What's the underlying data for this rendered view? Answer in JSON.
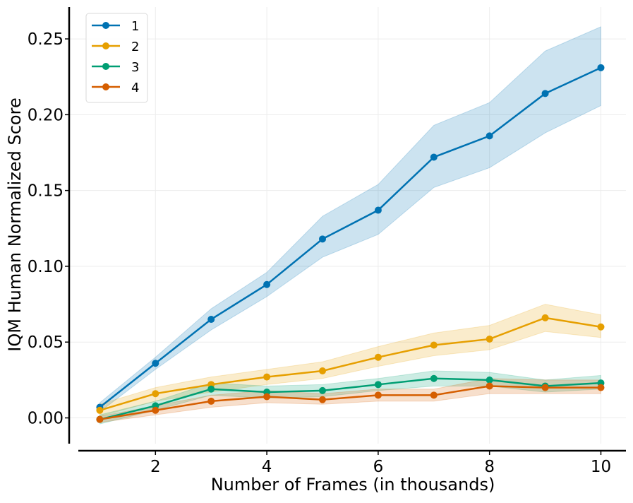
{
  "chart_data": {
    "type": "line",
    "xlabel": "Number of Frames (in thousands)",
    "ylabel": "IQM Human Normalized Score",
    "xlim": [
      0.45,
      10.45
    ],
    "ylim": [
      -0.017,
      0.271
    ],
    "xticks": [
      2,
      4,
      6,
      8,
      10
    ],
    "xtick_labels": [
      "2",
      "4",
      "6",
      "8",
      "10"
    ],
    "yticks": [
      0.0,
      0.05,
      0.1,
      0.15,
      0.2,
      0.25
    ],
    "ytick_labels": [
      "0.00",
      "0.05",
      "0.10",
      "0.15",
      "0.20",
      "0.25"
    ],
    "grid": true,
    "legend_position": "top-left",
    "x": [
      1,
      2,
      3,
      4,
      5,
      6,
      7,
      8,
      9,
      10
    ],
    "series": [
      {
        "name": "1",
        "color": "#0072B2",
        "values": [
          0.007,
          0.036,
          0.065,
          0.088,
          0.118,
          0.137,
          0.172,
          0.186,
          0.214,
          0.231
        ],
        "lower": [
          0.004,
          0.032,
          0.058,
          0.08,
          0.106,
          0.121,
          0.152,
          0.165,
          0.188,
          0.206
        ],
        "upper": [
          0.01,
          0.04,
          0.072,
          0.096,
          0.133,
          0.154,
          0.193,
          0.208,
          0.242,
          0.258
        ]
      },
      {
        "name": "2",
        "color": "#E69F00",
        "values": [
          0.005,
          0.016,
          0.022,
          0.027,
          0.031,
          0.04,
          0.048,
          0.052,
          0.066,
          0.06
        ],
        "lower": [
          0.001,
          0.011,
          0.017,
          0.022,
          0.026,
          0.034,
          0.041,
          0.045,
          0.057,
          0.053
        ],
        "upper": [
          0.009,
          0.02,
          0.027,
          0.032,
          0.037,
          0.047,
          0.056,
          0.061,
          0.075,
          0.068
        ]
      },
      {
        "name": "3",
        "color": "#009E73",
        "values": [
          -0.001,
          0.008,
          0.019,
          0.017,
          0.018,
          0.022,
          0.026,
          0.025,
          0.021,
          0.023
        ],
        "lower": [
          -0.004,
          0.005,
          0.015,
          0.013,
          0.014,
          0.018,
          0.021,
          0.021,
          0.017,
          0.019
        ],
        "upper": [
          0.002,
          0.011,
          0.023,
          0.021,
          0.022,
          0.026,
          0.031,
          0.03,
          0.025,
          0.028
        ]
      },
      {
        "name": "4",
        "color": "#D55E00",
        "values": [
          -0.001,
          0.005,
          0.011,
          0.014,
          0.012,
          0.015,
          0.015,
          0.021,
          0.02,
          0.02
        ],
        "lower": [
          -0.003,
          0.002,
          0.007,
          0.01,
          0.009,
          0.011,
          0.011,
          0.016,
          0.016,
          0.016
        ],
        "upper": [
          0.001,
          0.008,
          0.015,
          0.018,
          0.016,
          0.019,
          0.019,
          0.026,
          0.025,
          0.025
        ]
      }
    ]
  }
}
